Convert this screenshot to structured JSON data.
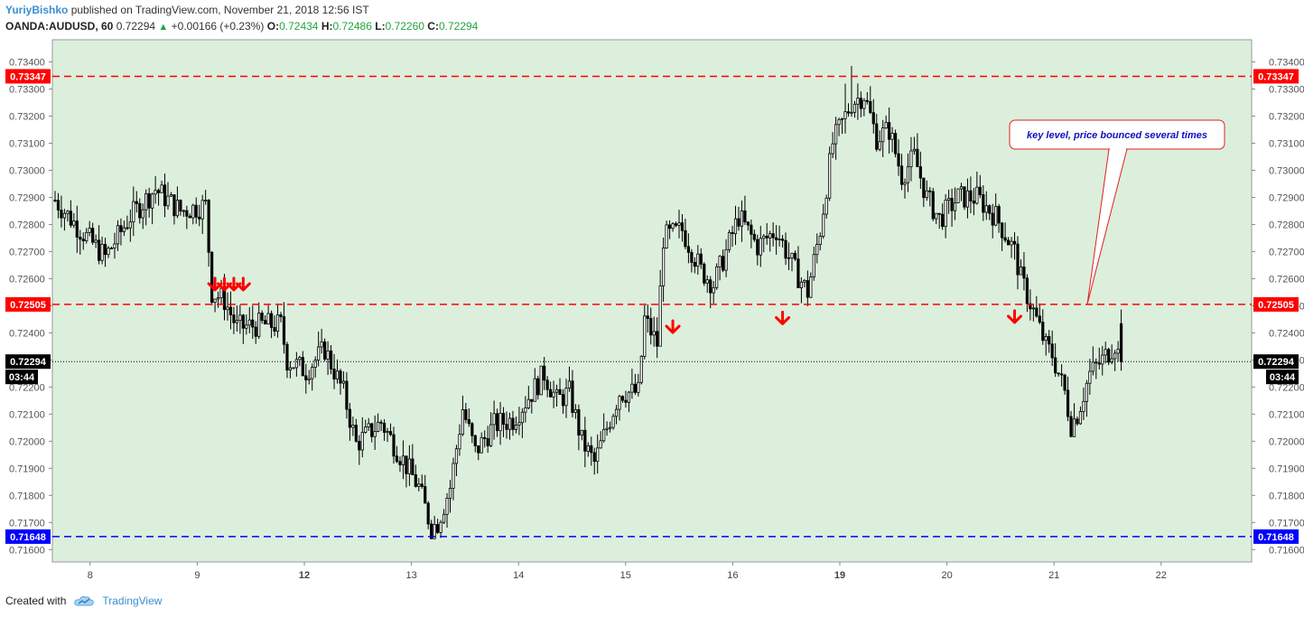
{
  "header": {
    "author": "YuriyBishko",
    "published_text": "published on TradingView.com, November 21, 2018 12:56 IST",
    "symbol": "OANDA:AUDUSD, 60",
    "last": "0.72294",
    "change": "+0.00166 (+0.23%)",
    "open_label": "O:",
    "open": "0.72434",
    "high_label": "H:",
    "high": "0.72486",
    "low_label": "L:",
    "low": "0.72260",
    "close_label": "C:",
    "close": "0.72294"
  },
  "footer": {
    "created_with": "Created with",
    "brand": "TradingView"
  },
  "annotation": {
    "text": "key level, price bounced several times"
  },
  "levels": [
    {
      "price": 0.73347,
      "label": "0.73347",
      "color": "#ff0000"
    },
    {
      "price": 0.72505,
      "label": "0.72505",
      "color": "#ff0000"
    },
    {
      "price": 0.72294,
      "label": "0.72294",
      "color": "#000000",
      "sub": "03:44"
    },
    {
      "price": 0.71648,
      "label": "0.71648",
      "color": "#0000ff"
    }
  ],
  "colors": {
    "background": "#dcefdc",
    "bull": "#ffffff",
    "bear": "#000000",
    "arrow": "#ff0000",
    "note": "#1010c0"
  },
  "chart_data": {
    "type": "candlestick",
    "ylim": [
      0.7155,
      0.7345
    ],
    "y_ticks": [
      "0.73400",
      "0.73300",
      "0.73200",
      "0.73100",
      "0.73000",
      "0.72900",
      "0.72800",
      "0.72700",
      "0.72600",
      "0.72500",
      "0.72400",
      "0.72300",
      "0.72200",
      "0.72100",
      "0.72000",
      "0.71900",
      "0.71800",
      "0.71700",
      "0.71600"
    ],
    "x_ticks": [
      {
        "label": "8",
        "bold": false
      },
      {
        "label": "9",
        "bold": false
      },
      {
        "label": "12",
        "bold": true
      },
      {
        "label": "13",
        "bold": false
      },
      {
        "label": "14",
        "bold": false
      },
      {
        "label": "15",
        "bold": false
      },
      {
        "label": "16",
        "bold": false
      },
      {
        "label": "19",
        "bold": true
      },
      {
        "label": "20",
        "bold": false
      },
      {
        "label": "21",
        "bold": false
      },
      {
        "label": "22",
        "bold": false
      }
    ],
    "anchors": [
      [
        0,
        0.7289
      ],
      [
        8,
        0.7278
      ],
      [
        16,
        0.7268
      ],
      [
        24,
        0.7283
      ],
      [
        32,
        0.7293
      ],
      [
        40,
        0.7285
      ],
      [
        48,
        0.7287
      ],
      [
        50,
        0.7255
      ],
      [
        54,
        0.7252
      ],
      [
        58,
        0.7242
      ],
      [
        66,
        0.7243
      ],
      [
        72,
        0.7243
      ],
      [
        74,
        0.723
      ],
      [
        80,
        0.7226
      ],
      [
        86,
        0.7234
      ],
      [
        92,
        0.7218
      ],
      [
        96,
        0.7199
      ],
      [
        104,
        0.7207
      ],
      [
        110,
        0.7195
      ],
      [
        116,
        0.7183
      ],
      [
        120,
        0.7168
      ],
      [
        122,
        0.717
      ],
      [
        126,
        0.7183
      ],
      [
        130,
        0.7212
      ],
      [
        134,
        0.7196
      ],
      [
        140,
        0.7206
      ],
      [
        146,
        0.7208
      ],
      [
        152,
        0.7218
      ],
      [
        156,
        0.7225
      ],
      [
        160,
        0.7215
      ],
      [
        164,
        0.7218
      ],
      [
        168,
        0.72
      ],
      [
        172,
        0.7192
      ],
      [
        176,
        0.7205
      ],
      [
        180,
        0.7218
      ],
      [
        186,
        0.7218
      ],
      [
        188,
        0.7245
      ],
      [
        192,
        0.7236
      ],
      [
        194,
        0.7275
      ],
      [
        200,
        0.7278
      ],
      [
        206,
        0.7263
      ],
      [
        210,
        0.7258
      ],
      [
        214,
        0.727
      ],
      [
        218,
        0.7283
      ],
      [
        224,
        0.7272
      ],
      [
        230,
        0.7278
      ],
      [
        236,
        0.7263
      ],
      [
        240,
        0.7255
      ],
      [
        244,
        0.7278
      ],
      [
        248,
        0.731
      ],
      [
        254,
        0.7325
      ],
      [
        258,
        0.7328
      ],
      [
        262,
        0.7312
      ],
      [
        266,
        0.7315
      ],
      [
        270,
        0.7298
      ],
      [
        274,
        0.7305
      ],
      [
        278,
        0.729
      ],
      [
        282,
        0.7282
      ],
      [
        288,
        0.729
      ],
      [
        294,
        0.729
      ],
      [
        300,
        0.7283
      ],
      [
        306,
        0.727
      ],
      [
        308,
        0.726
      ],
      [
        312,
        0.7248
      ],
      [
        316,
        0.7235
      ],
      [
        318,
        0.7232
      ],
      [
        322,
        0.7218
      ],
      [
        324,
        0.7206
      ],
      [
        326,
        0.721
      ],
      [
        330,
        0.7225
      ],
      [
        334,
        0.723
      ],
      [
        338,
        0.7236
      ],
      [
        340,
        0.7229
      ]
    ],
    "arrows": [
      {
        "bar": 51,
        "price": 0.72575
      },
      {
        "bar": 54,
        "price": 0.72575
      },
      {
        "bar": 57,
        "price": 0.72575
      },
      {
        "bar": 60,
        "price": 0.72575
      },
      {
        "bar": 197,
        "price": 0.72418
      },
      {
        "bar": 232,
        "price": 0.7245
      },
      {
        "bar": 306,
        "price": 0.72455
      }
    ]
  }
}
